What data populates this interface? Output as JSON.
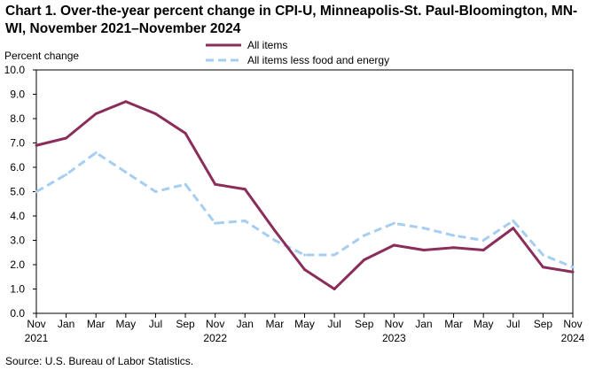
{
  "title": "Chart 1. Over-the-year percent change in CPI-U, Minneapolis-St. Paul-Bloomington, MN-WI, November 2021–November  2024",
  "source": "Source: U.S. Bureau of Labor Statistics.",
  "colors": {
    "all_items": "#8b2d5a",
    "less_food_energy": "#a6cef0",
    "axis": "#000000"
  },
  "chart_data": {
    "type": "line",
    "ylabel": "Percent change",
    "ylim": [
      0,
      10
    ],
    "yticks": [
      "0.0",
      "1.0",
      "2.0",
      "3.0",
      "4.0",
      "5.0",
      "6.0",
      "7.0",
      "8.0",
      "9.0",
      "10.0"
    ],
    "categories": [
      "Nov",
      "Jan",
      "Mar",
      "May",
      "Jul",
      "Sep",
      "Nov",
      "Jan",
      "Mar",
      "May",
      "Jul",
      "Sep",
      "Nov",
      "Jan",
      "Mar",
      "May",
      "Jul",
      "Sep",
      "Nov"
    ],
    "years": [
      {
        "index": 0,
        "label": "2021"
      },
      {
        "index": 6,
        "label": "2022"
      },
      {
        "index": 12,
        "label": "2023"
      },
      {
        "index": 18,
        "label": "2024"
      }
    ],
    "legend_position": "top-center",
    "series": [
      {
        "name": "All items",
        "style": "solid",
        "values": [
          6.9,
          7.2,
          8.2,
          8.7,
          8.2,
          7.4,
          5.3,
          5.1,
          3.4,
          1.8,
          1.0,
          2.2,
          2.8,
          2.6,
          2.7,
          2.6,
          3.5,
          1.9,
          1.7
        ]
      },
      {
        "name": "All items less food and energy",
        "style": "dashed",
        "values": [
          5.0,
          5.7,
          6.6,
          5.8,
          5.0,
          5.3,
          3.7,
          3.8,
          3.0,
          2.4,
          2.4,
          3.2,
          3.7,
          3.5,
          3.2,
          3.0,
          3.8,
          2.4,
          1.9
        ]
      }
    ]
  }
}
